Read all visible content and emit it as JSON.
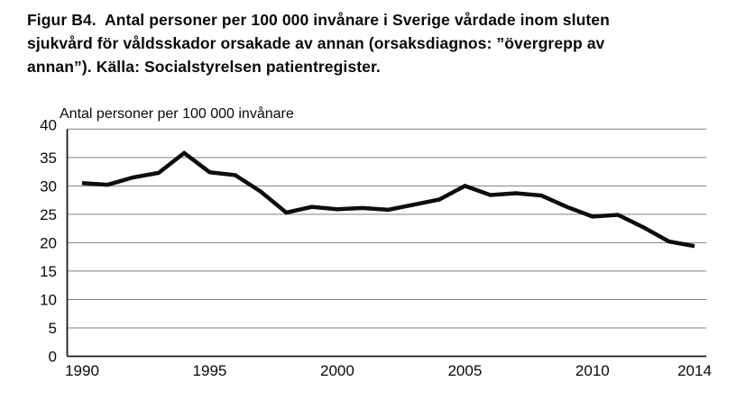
{
  "caption": {
    "lines": [
      "Figur B4.  Antal personer per 100 000 invånare i Sverige vårdade inom sluten",
      "sjukvård för våldsskador orsakade av annan (orsaksdiagnos: ”övergrepp av",
      "annan”). Källa: Socialstyrelsen patientregister."
    ]
  },
  "chart_data": {
    "type": "line",
    "title": "Antal personer per 100 000 invånare",
    "xlabel": "",
    "ylabel": "Antal personer per 100 000 invånare",
    "x": [
      1990,
      1991,
      1992,
      1993,
      1994,
      1995,
      1996,
      1997,
      1998,
      1999,
      2000,
      2001,
      2002,
      2003,
      2004,
      2005,
      2006,
      2007,
      2008,
      2009,
      2010,
      2011,
      2012,
      2013,
      2014
    ],
    "values": [
      30.5,
      30.2,
      31.5,
      32.3,
      35.8,
      32.4,
      31.9,
      29.0,
      25.3,
      26.3,
      25.9,
      26.1,
      25.8,
      26.7,
      27.6,
      30.0,
      28.4,
      28.7,
      28.3,
      26.3,
      24.6,
      24.9,
      22.7,
      20.2,
      19.4
    ],
    "ylim": [
      0,
      40
    ],
    "yticks": [
      0,
      5,
      10,
      15,
      20,
      25,
      30,
      35,
      40
    ],
    "xticks": [
      1990,
      1995,
      2000,
      2005,
      2010,
      2014
    ],
    "grid": true,
    "legend": false,
    "colors": {
      "line": "#0d0d0d",
      "grid": "#808080",
      "axis": "#1a1a1a",
      "text": "#0a0a0a",
      "background": "#ffffff"
    }
  }
}
